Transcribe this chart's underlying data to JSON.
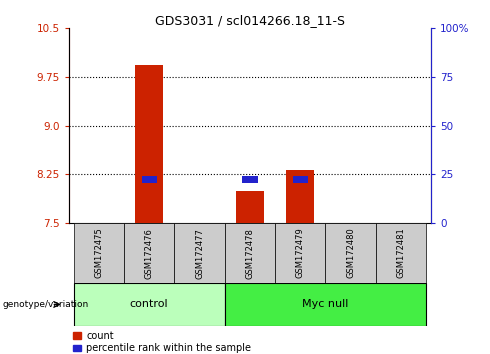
{
  "title": "GDS3031 / scl014266.18_11-S",
  "samples": [
    "GSM172475",
    "GSM172476",
    "GSM172477",
    "GSM172478",
    "GSM172479",
    "GSM172480",
    "GSM172481"
  ],
  "red_bar_bottom": 7.5,
  "red_bar_top": [
    7.5,
    9.93,
    7.5,
    8.0,
    8.32,
    7.5,
    7.5
  ],
  "blue_bar_values": [
    null,
    8.12,
    null,
    8.12,
    8.12,
    null,
    null
  ],
  "ylim_left": [
    7.5,
    10.5
  ],
  "yticks_left": [
    7.5,
    8.25,
    9.0,
    9.75,
    10.5
  ],
  "yticks_right": [
    0,
    25,
    50,
    75,
    100
  ],
  "ytick_labels_right": [
    "0",
    "25",
    "50",
    "75",
    "100%"
  ],
  "control_indices": [
    0,
    1,
    2
  ],
  "myc_null_indices": [
    3,
    4,
    5,
    6
  ],
  "control_label": "control",
  "myc_null_label": "Myc null",
  "genotype_label": "genotype/variation",
  "legend_red": "count",
  "legend_blue": "percentile rank within the sample",
  "red_color": "#CC2200",
  "blue_color": "#2222CC",
  "control_bg": "#BBFFBB",
  "myc_null_bg": "#44EE44",
  "sample_bg": "#CCCCCC",
  "bar_width": 0.55,
  "blue_bar_height": 0.1
}
